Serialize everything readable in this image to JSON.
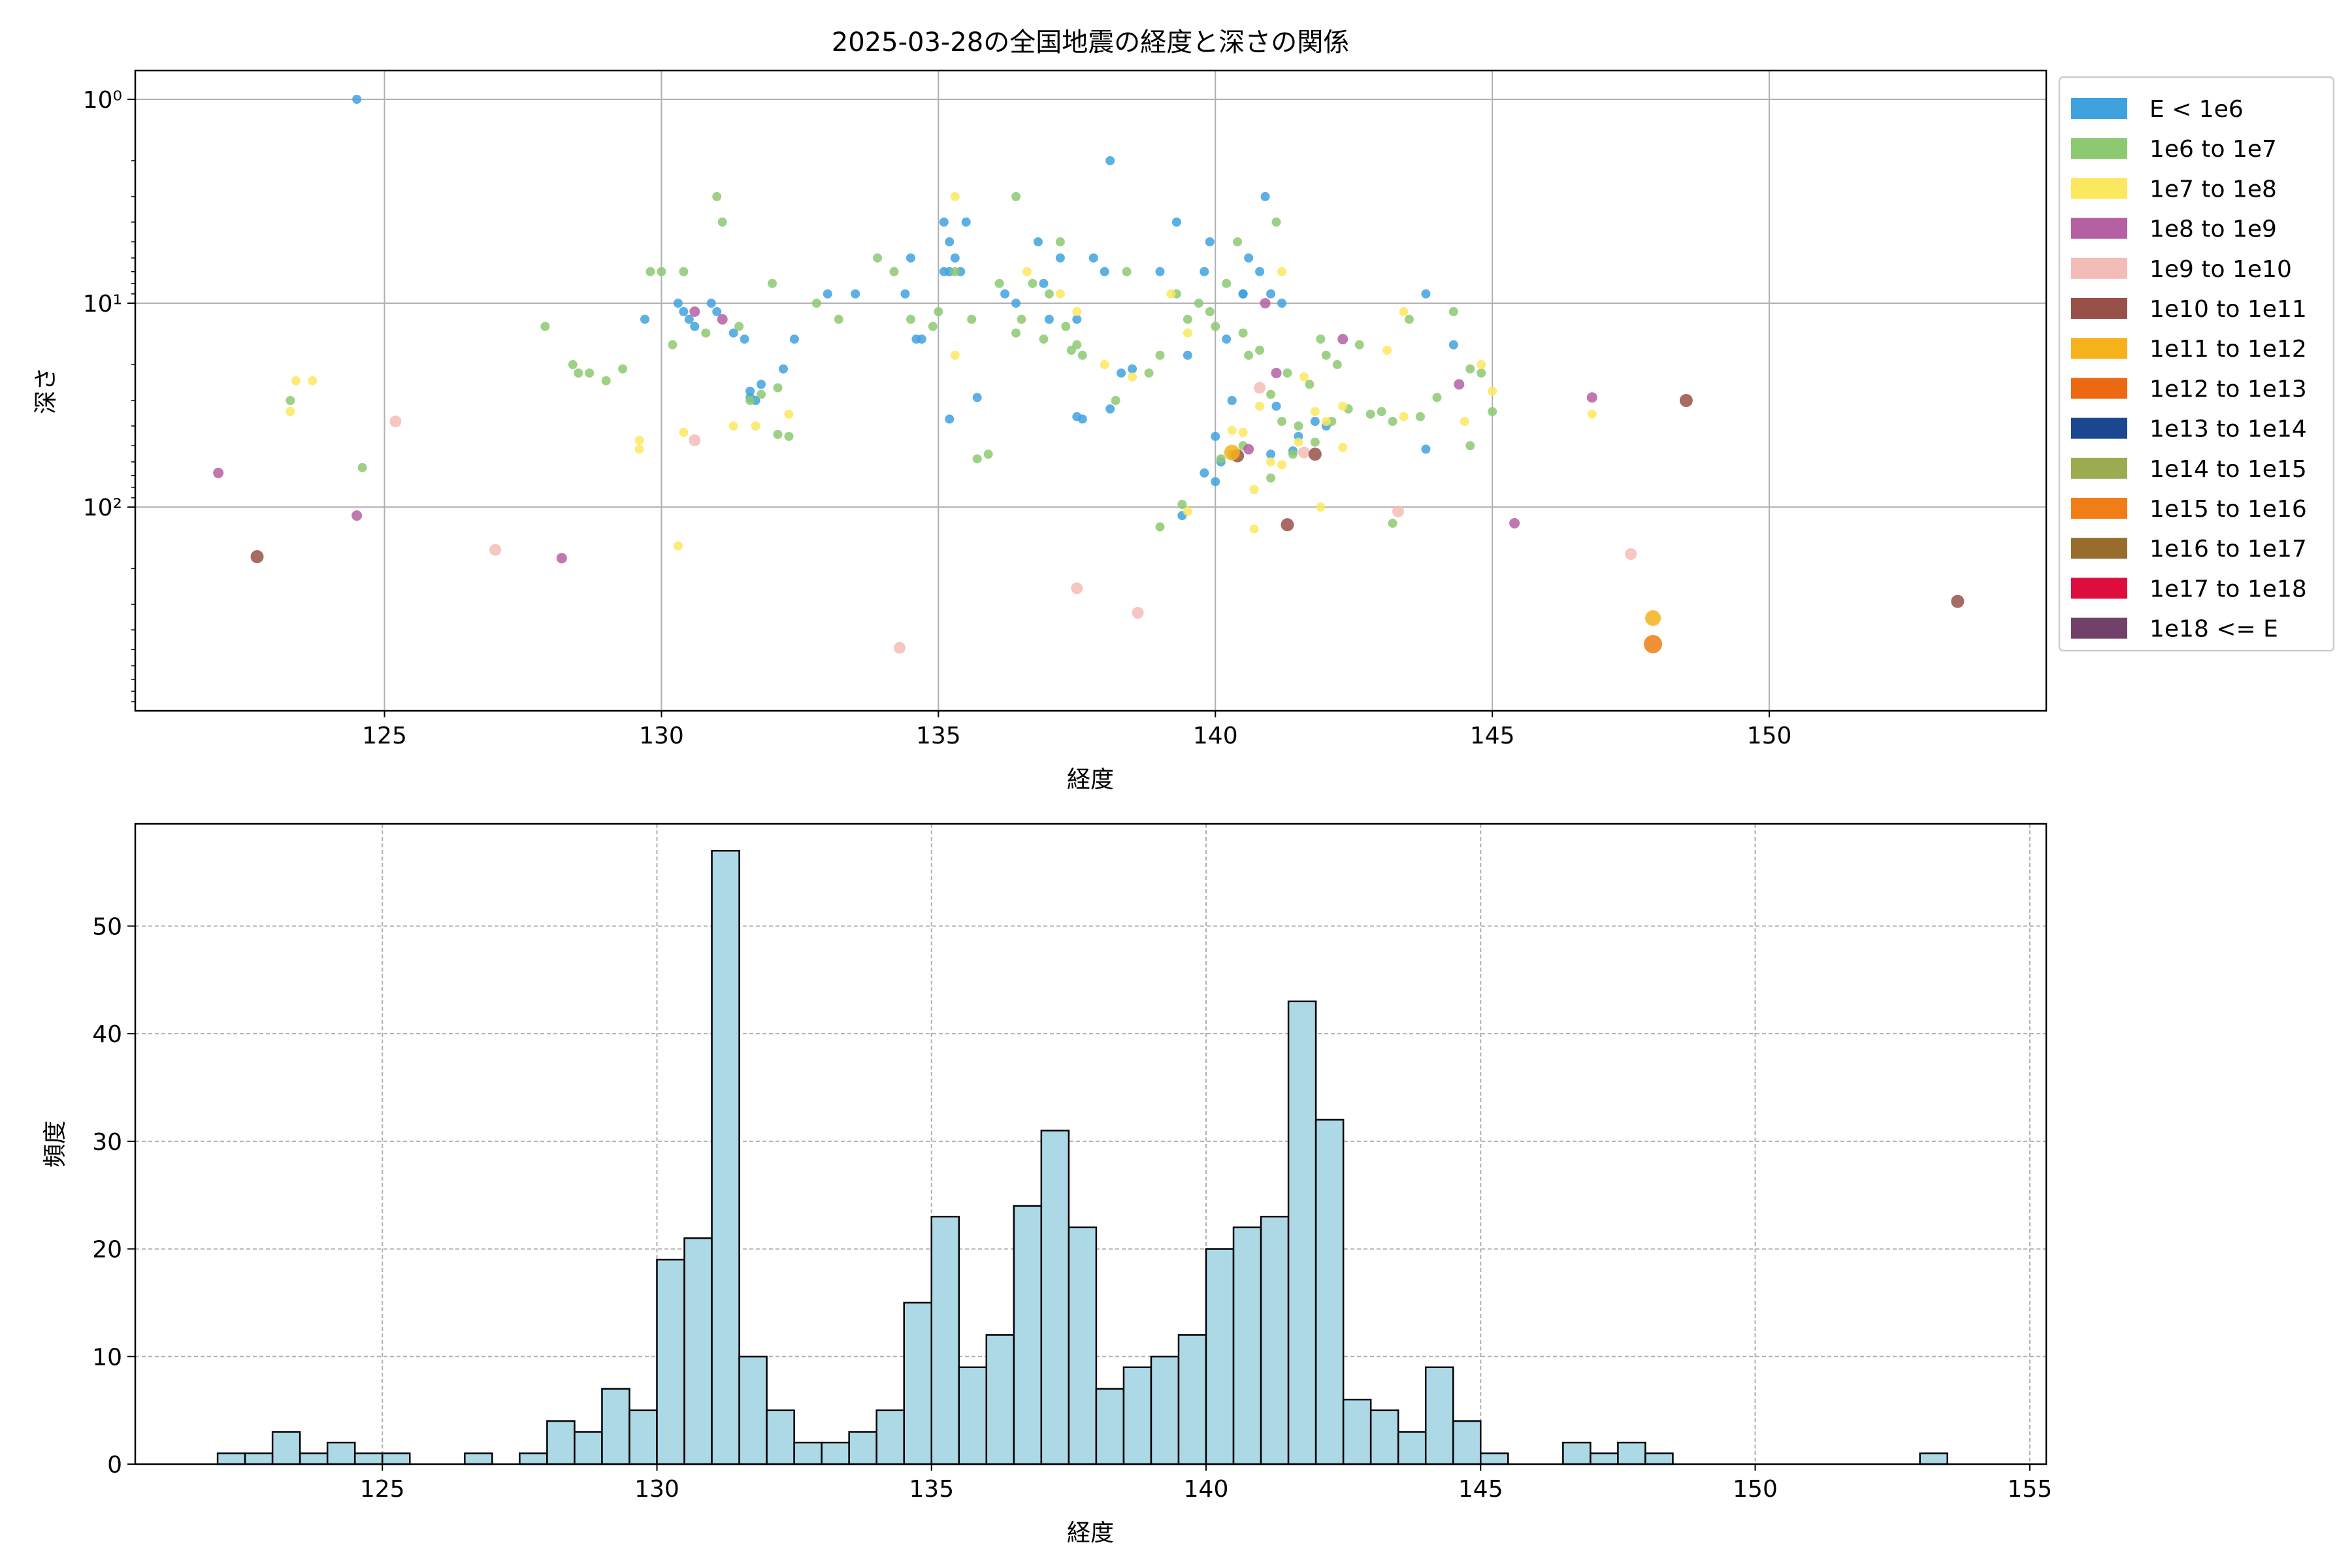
{
  "chart_data": [
    {
      "type": "scatter",
      "title": "2025-03-28の全国地震の経度と深さの関係",
      "xlabel": "経度",
      "ylabel": "深さ",
      "xlim": [
        120.5,
        155.0
      ],
      "xticks": [
        125,
        130,
        135,
        140,
        145,
        150
      ],
      "yscale": "log",
      "yaxis_inverted": true,
      "ylim": [
        1,
        900
      ],
      "yticks": [
        1,
        10,
        100
      ],
      "yticklabels": [
        "10⁰",
        "10¹",
        "10²"
      ],
      "grid": true,
      "legend_position": "outside-right",
      "legend": [
        {
          "label": "E < 1e6",
          "color": "#3fa2df"
        },
        {
          "label": "1e6 to 1e7",
          "color": "#8dc971"
        },
        {
          "label": "1e7 to 1e8",
          "color": "#fbe85f"
        },
        {
          "label": "1e8 to 1e9",
          "color": "#b560a2"
        },
        {
          "label": "1e9 to 1e10",
          "color": "#f4bcb6"
        },
        {
          "label": "1e10 to 1e11",
          "color": "#985148"
        },
        {
          "label": "1e11 to 1e12",
          "color": "#f6b21b"
        },
        {
          "label": "1e12 to 1e13",
          "color": "#ec6912"
        },
        {
          "label": "1e13 to 1e14",
          "color": "#1b4791"
        },
        {
          "label": "1e14 to 1e15",
          "color": "#9aac4f"
        },
        {
          "label": "1e15 to 1e16",
          "color": "#f07d15"
        },
        {
          "label": "1e16 to 1e17",
          "color": "#976c2c"
        },
        {
          "label": "1e17 to 1e18",
          "color": "#dd0d3d"
        },
        {
          "label": "1e18 <= E",
          "color": "#714169"
        }
      ],
      "series": [
        {
          "class": 0,
          "points": [
            [
              124.5,
              1.0
            ],
            [
              129.7,
              12
            ],
            [
              130.3,
              10
            ],
            [
              130.4,
              11
            ],
            [
              130.5,
              12
            ],
            [
              130.6,
              13
            ],
            [
              130.9,
              10
            ],
            [
              131.0,
              11
            ],
            [
              131.3,
              14
            ],
            [
              131.5,
              15
            ],
            [
              131.6,
              27
            ],
            [
              131.6,
              29
            ],
            [
              131.7,
              30
            ],
            [
              131.8,
              25
            ],
            [
              132.2,
              21
            ],
            [
              132.4,
              15
            ],
            [
              133.0,
              9
            ],
            [
              133.5,
              9
            ],
            [
              134.4,
              9
            ],
            [
              134.5,
              6
            ],
            [
              134.6,
              15
            ],
            [
              134.7,
              15
            ],
            [
              135.1,
              4
            ],
            [
              135.2,
              5
            ],
            [
              135.3,
              6
            ],
            [
              135.4,
              7
            ],
            [
              135.5,
              4
            ],
            [
              135.2,
              7
            ],
            [
              135.1,
              7
            ],
            [
              135.2,
              37
            ],
            [
              135.7,
              29
            ],
            [
              136.2,
              9
            ],
            [
              136.4,
              10
            ],
            [
              136.8,
              5
            ],
            [
              136.9,
              8
            ],
            [
              137.0,
              12
            ],
            [
              137.2,
              6
            ],
            [
              137.5,
              12
            ],
            [
              137.8,
              6
            ],
            [
              138.0,
              7
            ],
            [
              138.1,
              2.0
            ],
            [
              138.3,
              22
            ],
            [
              138.5,
              21
            ],
            [
              137.6,
              37
            ],
            [
              137.5,
              36
            ],
            [
              138.1,
              33
            ],
            [
              139.0,
              7
            ],
            [
              139.3,
              4
            ],
            [
              139.5,
              18
            ],
            [
              139.8,
              7
            ],
            [
              139.9,
              5
            ],
            [
              140.0,
              45
            ],
            [
              140.1,
              60
            ],
            [
              140.3,
              30
            ],
            [
              140.5,
              9
            ],
            [
              140.6,
              6
            ],
            [
              140.8,
              7
            ],
            [
              140.9,
              3.0
            ],
            [
              141.0,
              9
            ],
            [
              141.1,
              32
            ],
            [
              141.2,
              10
            ],
            [
              139.8,
              68
            ],
            [
              140.2,
              15
            ],
            [
              140.5,
              9
            ],
            [
              141.0,
              55
            ],
            [
              141.4,
              53
            ],
            [
              141.8,
              38
            ],
            [
              142.0,
              40
            ],
            [
              143.8,
              9
            ],
            [
              144.3,
              16
            ],
            [
              143.8,
              52
            ],
            [
              139.4,
              110
            ],
            [
              140.0,
              75
            ],
            [
              141.5,
              45
            ]
          ]
        },
        {
          "class": 1,
          "points": [
            [
              123.3,
              30
            ],
            [
              124.6,
              64
            ],
            [
              127.9,
              13
            ],
            [
              128.4,
              20
            ],
            [
              128.5,
              22
            ],
            [
              128.7,
              22
            ],
            [
              129.0,
              24
            ],
            [
              129.3,
              21
            ],
            [
              129.8,
              7
            ],
            [
              130.0,
              7
            ],
            [
              130.2,
              16
            ],
            [
              130.4,
              7
            ],
            [
              130.8,
              14
            ],
            [
              131.0,
              3.0
            ],
            [
              131.1,
              4
            ],
            [
              131.4,
              13
            ],
            [
              131.6,
              30
            ],
            [
              131.8,
              28
            ],
            [
              132.0,
              8
            ],
            [
              132.1,
              26
            ],
            [
              132.1,
              44
            ],
            [
              132.3,
              45
            ],
            [
              132.8,
              10
            ],
            [
              133.2,
              12
            ],
            [
              133.9,
              6
            ],
            [
              134.2,
              7
            ],
            [
              134.5,
              12
            ],
            [
              134.9,
              13
            ],
            [
              135.0,
              11
            ],
            [
              135.3,
              7
            ],
            [
              135.6,
              12
            ],
            [
              135.7,
              58
            ],
            [
              135.9,
              55
            ],
            [
              136.1,
              8
            ],
            [
              136.4,
              3.0
            ],
            [
              136.4,
              14
            ],
            [
              136.5,
              12
            ],
            [
              136.7,
              8
            ],
            [
              136.9,
              15
            ],
            [
              137.0,
              9
            ],
            [
              137.2,
              5
            ],
            [
              137.3,
              13
            ],
            [
              137.4,
              17
            ],
            [
              137.5,
              16
            ],
            [
              137.6,
              18
            ],
            [
              138.2,
              30
            ],
            [
              138.4,
              7
            ],
            [
              138.8,
              22
            ],
            [
              139.0,
              18
            ],
            [
              139.3,
              9
            ],
            [
              139.5,
              12
            ],
            [
              139.7,
              10
            ],
            [
              139.9,
              11
            ],
            [
              140.0,
              13
            ],
            [
              140.2,
              8
            ],
            [
              140.4,
              5
            ],
            [
              140.5,
              14
            ],
            [
              140.6,
              18
            ],
            [
              140.8,
              17
            ],
            [
              141.0,
              28
            ],
            [
              141.1,
              4
            ],
            [
              141.2,
              38
            ],
            [
              141.3,
              22
            ],
            [
              141.5,
              40
            ],
            [
              141.7,
              25
            ],
            [
              141.9,
              15
            ],
            [
              142.0,
              18
            ],
            [
              142.2,
              20
            ],
            [
              142.4,
              33
            ],
            [
              142.6,
              16
            ],
            [
              142.8,
              35
            ],
            [
              143.0,
              34
            ],
            [
              143.2,
              38
            ],
            [
              143.5,
              12
            ],
            [
              143.7,
              36
            ],
            [
              144.0,
              29
            ],
            [
              144.3,
              11
            ],
            [
              144.6,
              21
            ],
            [
              144.8,
              22
            ],
            [
              145.0,
              34
            ],
            [
              139.0,
              125
            ],
            [
              139.4,
              97
            ],
            [
              140.1,
              58
            ],
            [
              140.3,
              55
            ],
            [
              140.5,
              50
            ],
            [
              141.0,
              72
            ],
            [
              141.4,
              55
            ],
            [
              141.8,
              48
            ],
            [
              142.1,
              38
            ],
            [
              143.2,
              120
            ],
            [
              144.6,
              50
            ]
          ]
        },
        {
          "class": 2,
          "points": [
            [
              123.3,
              34
            ],
            [
              123.4,
              24
            ],
            [
              123.7,
              24
            ],
            [
              129.6,
              47
            ],
            [
              129.6,
              52
            ],
            [
              130.3,
              155
            ],
            [
              130.4,
              43
            ],
            [
              131.3,
              40
            ],
            [
              131.7,
              40
            ],
            [
              132.3,
              35
            ],
            [
              135.3,
              3.0
            ],
            [
              135.3,
              18
            ],
            [
              136.6,
              7
            ],
            [
              137.2,
              9
            ],
            [
              137.5,
              11
            ],
            [
              138.0,
              20
            ],
            [
              139.2,
              9
            ],
            [
              139.5,
              14
            ],
            [
              140.3,
              42
            ],
            [
              140.5,
              43
            ],
            [
              140.8,
              32
            ],
            [
              141.2,
              7
            ],
            [
              141.6,
              23
            ],
            [
              141.8,
              34
            ],
            [
              142.0,
              38
            ],
            [
              142.3,
              32
            ],
            [
              143.1,
              17
            ],
            [
              143.4,
              11
            ],
            [
              144.5,
              38
            ],
            [
              144.8,
              20
            ],
            [
              145.0,
              27
            ],
            [
              146.8,
              35
            ],
            [
              138.5,
              23
            ],
            [
              140.7,
              82
            ],
            [
              141.2,
              62
            ],
            [
              141.5,
              48
            ],
            [
              141.9,
              100
            ],
            [
              142.3,
              51
            ],
            [
              143.4,
              36
            ],
            [
              139.5,
              105
            ],
            [
              140.7,
              128
            ],
            [
              141.0,
              60
            ]
          ]
        },
        {
          "class": 3,
          "points": [
            [
              122.0,
              68
            ],
            [
              124.5,
              110
            ],
            [
              128.2,
              178
            ],
            [
              130.6,
              11
            ],
            [
              131.1,
              12
            ],
            [
              140.9,
              10
            ],
            [
              141.1,
              22
            ],
            [
              140.6,
              52
            ],
            [
              142.3,
              15
            ],
            [
              144.4,
              25
            ],
            [
              145.4,
              120
            ],
            [
              146.8,
              29
            ]
          ]
        },
        {
          "class": 4,
          "points": [
            [
              125.2,
              38
            ],
            [
              127.0,
              162
            ],
            [
              130.6,
              47
            ],
            [
              134.3,
              490
            ],
            [
              137.5,
              250
            ],
            [
              138.6,
              330
            ],
            [
              140.8,
              26
            ],
            [
              143.3,
              105
            ],
            [
              147.5,
              170
            ],
            [
              141.6,
              54
            ]
          ]
        },
        {
          "class": 5,
          "points": [
            [
              122.7,
              175
            ],
            [
              141.3,
              122
            ],
            [
              148.5,
              30
            ],
            [
              153.4,
              290
            ],
            [
              141.8,
              55
            ],
            [
              140.4,
              56
            ]
          ]
        },
        {
          "class": 6,
          "points": [
            [
              140.3,
              54
            ],
            [
              147.9,
              350
            ]
          ]
        },
        {
          "class": 10,
          "points": [
            [
              147.9,
              470
            ]
          ]
        }
      ]
    },
    {
      "type": "bar",
      "title": "",
      "xlabel": "経度",
      "ylabel": "頻度",
      "xlim": [
        120.5,
        155.3
      ],
      "xticks": [
        125,
        130,
        135,
        140,
        145,
        150,
        155
      ],
      "ylim": [
        0,
        59.5
      ],
      "yticks": [
        0,
        10,
        20,
        30,
        40,
        50
      ],
      "grid": true,
      "bar_color": "#add8e6",
      "edge_color": "#000000",
      "bin_start": 122.0,
      "bin_width": 0.5,
      "values": [
        1,
        1,
        3,
        1,
        2,
        1,
        1,
        0,
        0,
        1,
        0,
        1,
        4,
        3,
        7,
        5,
        19,
        21,
        57,
        10,
        5,
        2,
        2,
        3,
        5,
        15,
        23,
        9,
        12,
        24,
        31,
        22,
        7,
        9,
        10,
        12,
        20,
        22,
        23,
        43,
        32,
        6,
        5,
        3,
        9,
        4,
        1,
        0,
        0,
        2,
        1,
        2,
        1,
        0,
        0,
        0,
        0,
        0,
        0,
        0,
        0,
        0,
        1
      ]
    }
  ]
}
